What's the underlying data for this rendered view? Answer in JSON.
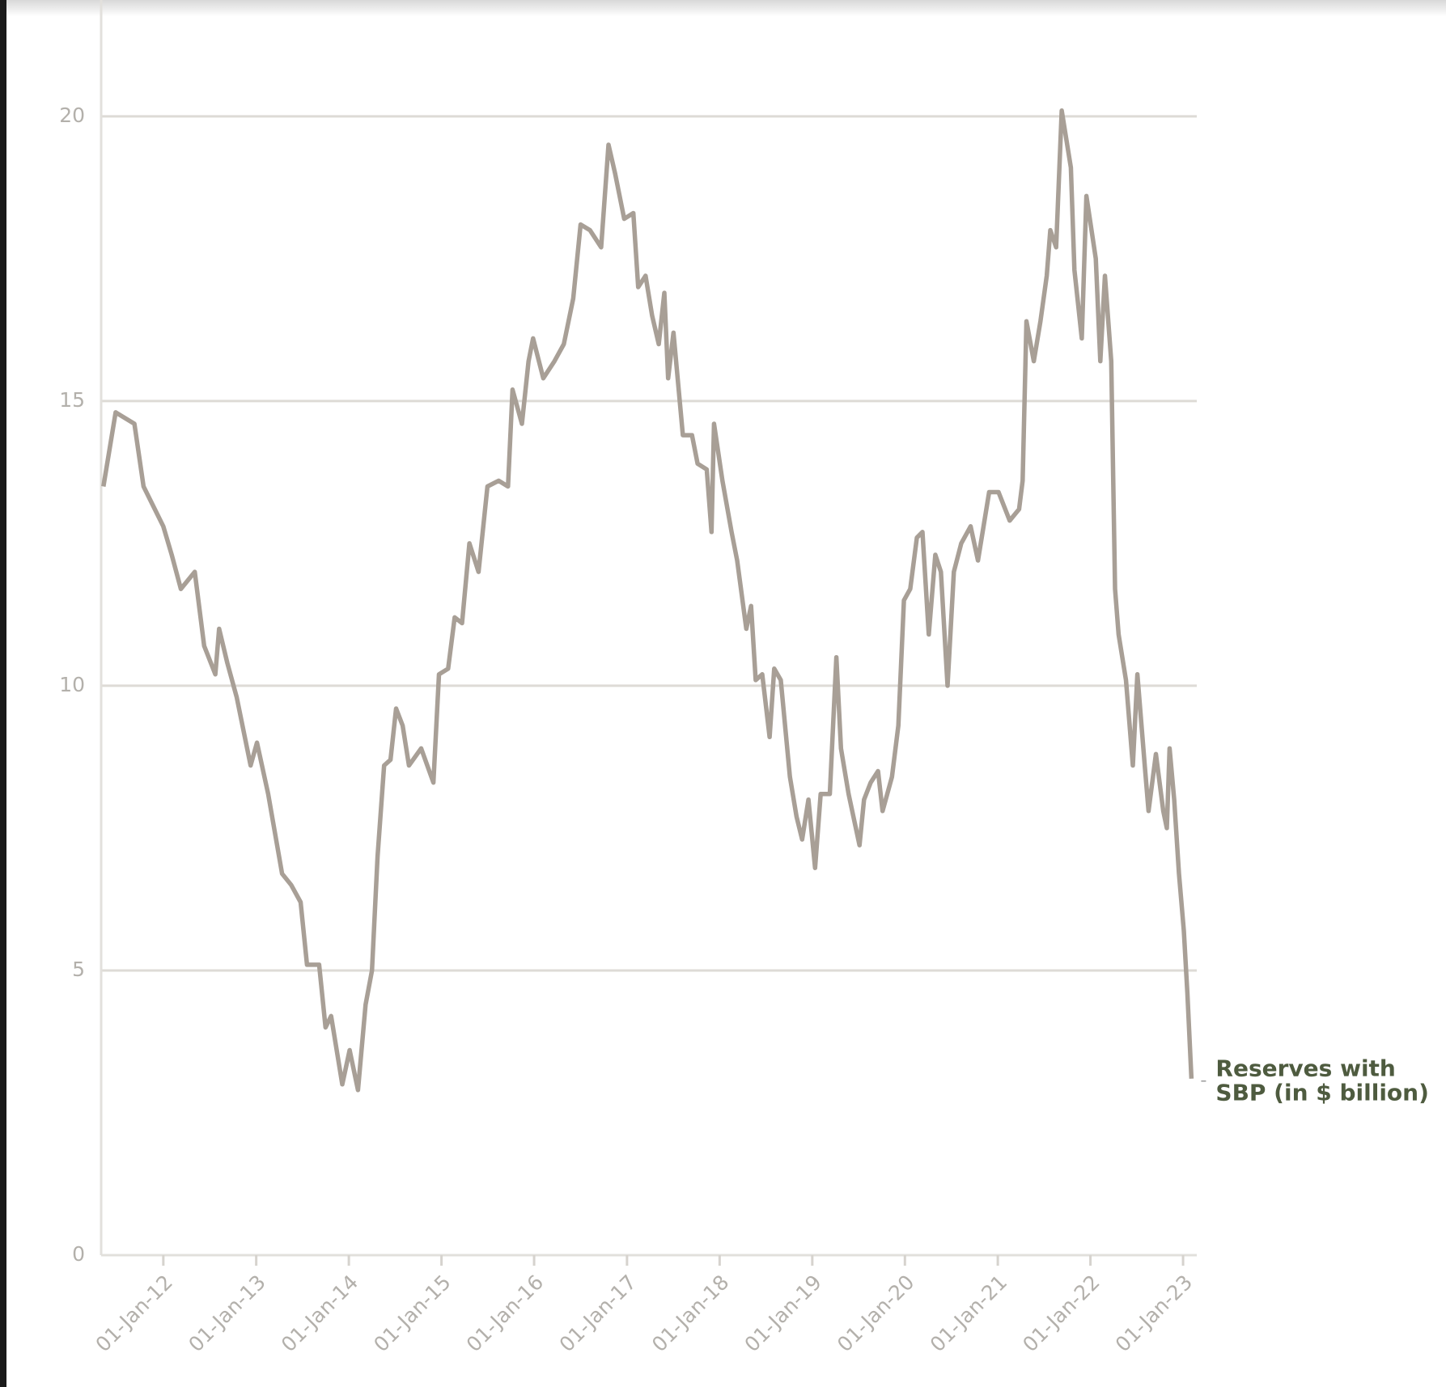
{
  "chart_data": {
    "type": "line",
    "annotation": [
      "Reserves with",
      "SBP (in $ billion)"
    ],
    "x": [
      "2011-05-10",
      "2011-06-27",
      "2011-09-09",
      "2011-10-15",
      "2012-01-01",
      "2012-02-03",
      "2012-03-10",
      "2012-05-04",
      "2012-06-10",
      "2012-07-24",
      "2012-08-08",
      "2012-09-09",
      "2012-10-16",
      "2012-12-10",
      "2013-01-04",
      "2013-02-17",
      "2013-04-13",
      "2013-05-19",
      "2013-06-25",
      "2013-07-20",
      "2013-09-06",
      "2013-10-01",
      "2013-10-23",
      "2013-12-06",
      "2014-01-04",
      "2014-02-06",
      "2014-03-08",
      "2014-04-02",
      "2014-04-24",
      "2014-05-20",
      "2014-06-14",
      "2014-07-06",
      "2014-08-01",
      "2014-08-26",
      "2014-10-13",
      "2014-11-30",
      "2014-12-22",
      "2015-01-27",
      "2015-02-22",
      "2015-03-23",
      "2015-04-21",
      "2015-05-27",
      "2015-07-01",
      "2015-08-14",
      "2015-09-20",
      "2015-10-08",
      "2015-11-14",
      "2015-12-10",
      "2015-12-28",
      "2016-02-06",
      "2016-03-21",
      "2016-04-27",
      "2016-06-03",
      "2016-07-02",
      "2016-08-08",
      "2016-09-21",
      "2016-10-20",
      "2016-11-15",
      "2016-12-21",
      "2017-01-26",
      "2017-02-14",
      "2017-03-15",
      "2017-04-10",
      "2017-05-06",
      "2017-05-28",
      "2017-06-12",
      "2017-07-03",
      "2017-08-09",
      "2017-09-14",
      "2017-10-06",
      "2017-11-11",
      "2017-11-30",
      "2017-12-10",
      "2018-01-12",
      "2018-02-17",
      "2018-03-11",
      "2018-04-16",
      "2018-05-05",
      "2018-05-23",
      "2018-06-18",
      "2018-07-17",
      "2018-08-04",
      "2018-08-30",
      "2018-10-05",
      "2018-10-31",
      "2018-11-22",
      "2018-12-17",
      "2019-01-12",
      "2019-02-03",
      "2019-03-11",
      "2019-04-06",
      "2019-04-24",
      "2019-05-24",
      "2019-07-06",
      "2019-07-24",
      "2019-08-19",
      "2019-09-17",
      "2019-10-05",
      "2019-11-11",
      "2019-12-06",
      "2019-12-28",
      "2020-01-22",
      "2020-02-17",
      "2020-03-10",
      "2020-04-04",
      "2020-04-30",
      "2020-05-22",
      "2020-06-17",
      "2020-07-12",
      "2020-08-10",
      "2020-09-16",
      "2020-10-15",
      "2020-11-28",
      "2021-01-04",
      "2021-02-17",
      "2021-03-26",
      "2021-04-09",
      "2021-04-24",
      "2021-05-23",
      "2021-06-18",
      "2021-07-13",
      "2021-07-27",
      "2021-08-19",
      "2021-09-10",
      "2021-10-16",
      "2021-10-30",
      "2021-11-28",
      "2021-12-16",
      "2022-01-22",
      "2022-02-09",
      "2022-02-27",
      "2022-03-24",
      "2022-04-08",
      "2022-04-22",
      "2022-05-21",
      "2022-06-17",
      "2022-07-05",
      "2022-08-03",
      "2022-08-18",
      "2022-09-16",
      "2022-10-15",
      "2022-10-29",
      "2022-11-09",
      "2022-11-27",
      "2022-12-16",
      "2023-01-04",
      "2023-01-18",
      "2023-02-03"
    ],
    "series": [
      {
        "name": "Reserves with SBP (in $ billion)",
        "color": "#a89f96",
        "values": [
          13.5,
          14.8,
          14.6,
          13.5,
          12.8,
          12.3,
          11.7,
          12.0,
          10.7,
          10.2,
          11.0,
          10.4,
          9.8,
          8.6,
          9.0,
          8.1,
          6.7,
          6.5,
          6.2,
          5.1,
          5.1,
          4.0,
          4.2,
          3.0,
          3.6,
          2.9,
          4.4,
          5.0,
          7.0,
          8.6,
          8.7,
          9.6,
          9.3,
          8.6,
          8.9,
          8.3,
          10.2,
          10.3,
          11.2,
          11.1,
          12.5,
          12.0,
          13.5,
          13.6,
          13.5,
          15.2,
          14.6,
          15.7,
          16.1,
          15.4,
          15.7,
          16.0,
          16.8,
          18.1,
          18.0,
          17.7,
          19.5,
          19.0,
          18.2,
          18.3,
          17.0,
          17.2,
          16.5,
          16.0,
          16.9,
          15.4,
          16.2,
          14.4,
          14.4,
          13.9,
          13.8,
          12.7,
          14.6,
          13.6,
          12.7,
          12.2,
          11.0,
          11.4,
          10.1,
          10.2,
          9.1,
          10.3,
          10.1,
          8.4,
          7.7,
          7.3,
          8.0,
          6.8,
          8.1,
          8.1,
          10.5,
          8.9,
          8.1,
          7.2,
          8.0,
          8.3,
          8.5,
          7.8,
          8.4,
          9.3,
          11.5,
          11.7,
          12.6,
          12.7,
          10.9,
          12.3,
          12.0,
          10.0,
          12.0,
          12.5,
          12.8,
          12.2,
          13.4,
          13.4,
          12.9,
          13.1,
          13.6,
          16.4,
          15.7,
          16.4,
          17.2,
          18.0,
          17.7,
          20.1,
          19.1,
          17.3,
          16.1,
          18.6,
          17.5,
          15.7,
          17.2,
          15.7,
          11.7,
          10.9,
          10.1,
          8.6,
          10.2,
          8.6,
          7.8,
          8.8,
          7.8,
          7.5,
          8.9,
          8.0,
          6.7,
          5.7,
          4.6,
          3.1
        ]
      }
    ],
    "xlim": [
      "2011-05-01",
      "2023-02-24"
    ],
    "xticks": [
      {
        "value": "2012-01-01",
        "label": "01-Jan-12"
      },
      {
        "value": "2013-01-01",
        "label": "01-Jan-13"
      },
      {
        "value": "2014-01-01",
        "label": "01-Jan-14"
      },
      {
        "value": "2015-01-01",
        "label": "01-Jan-15"
      },
      {
        "value": "2016-01-01",
        "label": "01-Jan-16"
      },
      {
        "value": "2017-01-01",
        "label": "01-Jan-17"
      },
      {
        "value": "2018-01-01",
        "label": "01-Jan-18"
      },
      {
        "value": "2019-01-01",
        "label": "01-Jan-19"
      },
      {
        "value": "2020-01-01",
        "label": "01-Jan-20"
      },
      {
        "value": "2021-01-01",
        "label": "01-Jan-21"
      },
      {
        "value": "2022-01-01",
        "label": "01-Jan-22"
      },
      {
        "value": "2023-01-01",
        "label": "01-Jan-23"
      }
    ],
    "ylim": [
      0,
      22
    ],
    "yticks": [
      0,
      5,
      10,
      15,
      20
    ],
    "grid": true
  }
}
